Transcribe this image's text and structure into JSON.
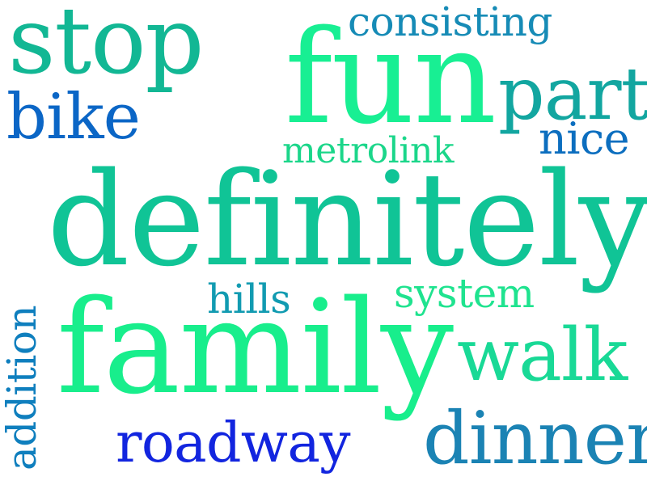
{
  "words": [
    {
      "text": "stop",
      "color": "#12b794"
    },
    {
      "text": "fun",
      "color": "#18ef93"
    },
    {
      "text": "consisting",
      "color": "#168bb6"
    },
    {
      "text": "part",
      "color": "#12a6a0"
    },
    {
      "text": "bike",
      "color": "#0b66c6"
    },
    {
      "text": "nice",
      "color": "#0c6ebf"
    },
    {
      "text": "metrolink",
      "color": "#1bd68a"
    },
    {
      "text": "definitely",
      "color": "#10c496"
    },
    {
      "text": "hills",
      "color": "#129bb1"
    },
    {
      "text": "system",
      "color": "#1fe38f"
    },
    {
      "text": "family",
      "color": "#18ee8c"
    },
    {
      "text": "walk",
      "color": "#19d996"
    },
    {
      "text": "dinner",
      "color": "#1b83b4"
    },
    {
      "text": "roadway",
      "color": "#1225df"
    },
    {
      "text": "addition",
      "color": "#0f7fbe"
    }
  ]
}
